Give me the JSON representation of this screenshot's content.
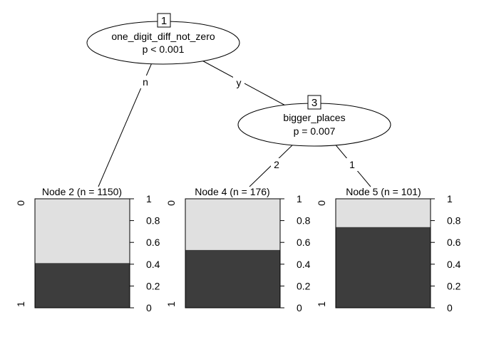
{
  "tree": {
    "inner_nodes": [
      {
        "id": "1",
        "variable": "one_digit_diff_not_zero",
        "pvalue": "p < 0.001"
      },
      {
        "id": "3",
        "variable": "bigger_places",
        "pvalue": "p = 0.007"
      }
    ],
    "edges": [
      {
        "from": "1",
        "to": "2",
        "label": "n"
      },
      {
        "from": "1",
        "to": "3",
        "label": "y"
      },
      {
        "from": "3",
        "to": "4",
        "label": "2"
      },
      {
        "from": "3",
        "to": "5",
        "label": "1"
      }
    ],
    "terminal_nodes": [
      {
        "id": "2",
        "title": "Node 2 (n = 1150)",
        "n": 1150,
        "prop_class_1": 0.41
      },
      {
        "id": "4",
        "title": "Node 4 (n = 176)",
        "n": 176,
        "prop_class_1": 0.53
      },
      {
        "id": "5",
        "title": "Node 5 (n = 101)",
        "n": 101,
        "prop_class_1": 0.74
      }
    ],
    "class_labels": {
      "top": "0",
      "bottom": "1"
    },
    "axis_ticks": [
      "0",
      "0.2",
      "0.4",
      "0.6",
      "0.8",
      "1"
    ],
    "colors": {
      "class_0": "#e0e0e0",
      "class_1": "#3d3d3d",
      "stroke": "#000000"
    }
  }
}
